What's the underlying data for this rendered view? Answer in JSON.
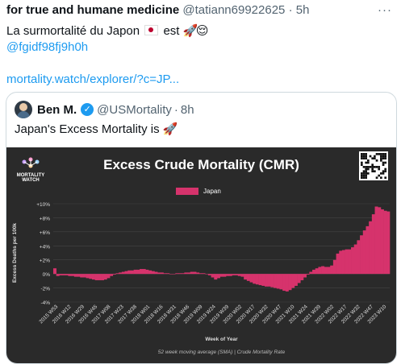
{
  "tweet": {
    "author_name": "for true and humane medicine",
    "handle": "@tatiann69922625",
    "separator": "·",
    "time": "5h",
    "more_icon": "more-horizontal-icon",
    "line1_text": "La surmortalité du Japon",
    "line1_word": "est",
    "flag_icon": "japan-flag-icon",
    "rocket_emoji": "🚀",
    "relieved_emoji": "😌",
    "mention": "@fgidf98fj9h0h",
    "link": "mortality.watch/explorer/?c=JP..."
  },
  "quoted": {
    "author_name": "Ben M.",
    "verified_icon": "verified-badge-icon",
    "handle": "@USMortality",
    "separator": "·",
    "time": "8h",
    "text": "Japan's Excess Mortality is",
    "rocket_emoji": "🚀"
  },
  "chart_data": {
    "type": "area",
    "title": "Excess Crude Mortality (CMR)",
    "logo_text_1": "MORTALITY",
    "logo_text_2": "WATCH",
    "series_name": "Japan",
    "color": "#d6336c",
    "background": "#2a2a2a",
    "ylabel": "Excess Deaths per 100k",
    "xlabel": "Week of Year",
    "caption": "52 week moving average (SMA) | Crude Mortality Rate",
    "ylim": [
      -4,
      10
    ],
    "yticks": [
      "+10%",
      "+8%",
      "+6%",
      "+4%",
      "+2%",
      "0%",
      "-2%",
      "-4%"
    ],
    "ytick_values": [
      10,
      8,
      6,
      4,
      2,
      0,
      -2,
      -4
    ],
    "xticks": [
      "2015 W53",
      "2016 W12",
      "2016 W29",
      "2016 W45",
      "2017 W08",
      "2017 W23",
      "2017 W38",
      "2018 W01",
      "2018 W16",
      "2018 W31",
      "2018 W46",
      "2019 W09",
      "2019 W24",
      "2019 W39",
      "2020 W02",
      "2020 W17",
      "2020 W32",
      "2020 W47",
      "2021 W10",
      "2021 W24",
      "2021 W39",
      "2022 W02",
      "2022 W17",
      "2022 W32",
      "2022 W47",
      "2023 W10"
    ],
    "values": [
      0.8,
      -0.3,
      -0.2,
      -0.2,
      -0.2,
      -0.3,
      -0.3,
      -0.4,
      -0.4,
      -0.5,
      -0.5,
      -0.6,
      -0.7,
      -0.8,
      -0.9,
      -0.9,
      -0.9,
      -0.8,
      -0.6,
      -0.3,
      -0.1,
      0.1,
      0.2,
      0.3,
      0.4,
      0.5,
      0.5,
      0.6,
      0.6,
      0.7,
      0.7,
      0.6,
      0.5,
      0.4,
      0.3,
      0.2,
      0.2,
      0.1,
      0.1,
      0.0,
      0.0,
      0.1,
      0.1,
      0.1,
      0.2,
      0.2,
      0.3,
      0.3,
      0.2,
      0.1,
      0.1,
      0.0,
      -0.2,
      -0.5,
      -0.8,
      -0.6,
      -0.4,
      -0.4,
      -0.3,
      -0.3,
      -0.2,
      -0.2,
      -0.3,
      -0.4,
      -0.8,
      -1.0,
      -1.2,
      -1.4,
      -1.5,
      -1.6,
      -1.7,
      -1.8,
      -1.8,
      -1.9,
      -2.0,
      -2.1,
      -2.2,
      -2.4,
      -2.5,
      -2.3,
      -2.0,
      -1.7,
      -1.3,
      -0.9,
      -0.5,
      -0.1,
      0.3,
      0.6,
      0.8,
      1.0,
      1.1,
      1.0,
      1.0,
      1.2,
      2.0,
      2.9,
      3.3,
      3.4,
      3.5,
      3.5,
      3.8,
      4.2,
      4.8,
      5.5,
      6.2,
      6.8,
      7.5,
      8.5,
      9.6,
      9.5,
      9.2,
      9.0,
      8.9
    ]
  }
}
